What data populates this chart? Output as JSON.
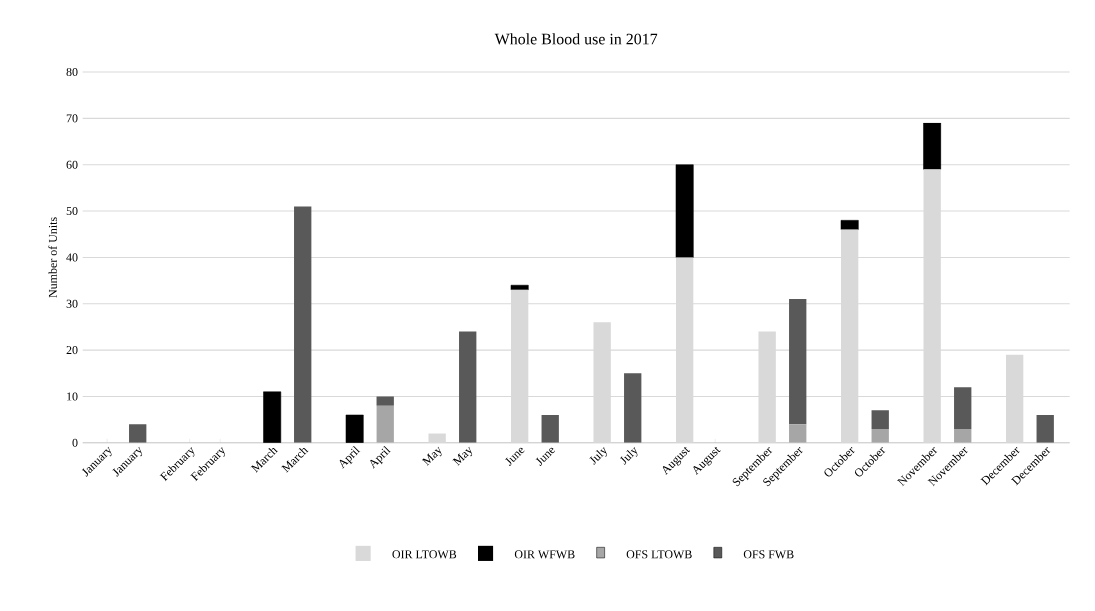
{
  "chart_data": {
    "type": "bar",
    "title": "Whole Blood use in 2017",
    "ylabel": "Number of Units",
    "categories": [
      "January",
      "January",
      "February",
      "February",
      "March",
      "March",
      "April",
      "April",
      "May",
      "May",
      "June",
      "June",
      "July",
      "July",
      "August",
      "August",
      "September",
      "September",
      "October",
      "October",
      "November",
      "November",
      "December",
      "December"
    ],
    "stacked": true,
    "ylim": [
      0,
      80
    ],
    "yticks": [
      0,
      10,
      20,
      30,
      40,
      50,
      60,
      70,
      80
    ],
    "grid": "y",
    "legend": "bottom",
    "series": [
      {
        "name": "OIR LTOWB",
        "color": "#d9d9d9",
        "values": [
          0,
          null,
          0,
          null,
          0,
          null,
          0,
          null,
          2,
          null,
          33,
          null,
          26,
          null,
          40,
          null,
          24,
          null,
          46,
          null,
          59,
          null,
          19,
          null
        ]
      },
      {
        "name": "OIR  WFWB",
        "color": "#000000",
        "values": [
          0,
          null,
          0,
          null,
          11,
          null,
          6,
          null,
          0,
          null,
          1,
          null,
          0,
          null,
          20,
          null,
          0,
          null,
          2,
          null,
          10,
          null,
          0,
          null
        ]
      },
      {
        "name": "OFS LTOWB",
        "color": "#a6a6a6",
        "values": [
          null,
          0,
          null,
          0,
          null,
          0,
          null,
          8,
          null,
          0,
          null,
          0,
          null,
          0,
          null,
          0,
          null,
          4,
          null,
          3,
          null,
          3,
          null,
          0
        ]
      },
      {
        "name": "OFS FWB",
        "color": "#595959",
        "values": [
          null,
          4,
          null,
          0,
          null,
          51,
          null,
          2,
          null,
          24,
          null,
          6,
          null,
          15,
          null,
          0,
          null,
          27,
          null,
          4,
          null,
          9,
          null,
          6
        ]
      }
    ]
  }
}
